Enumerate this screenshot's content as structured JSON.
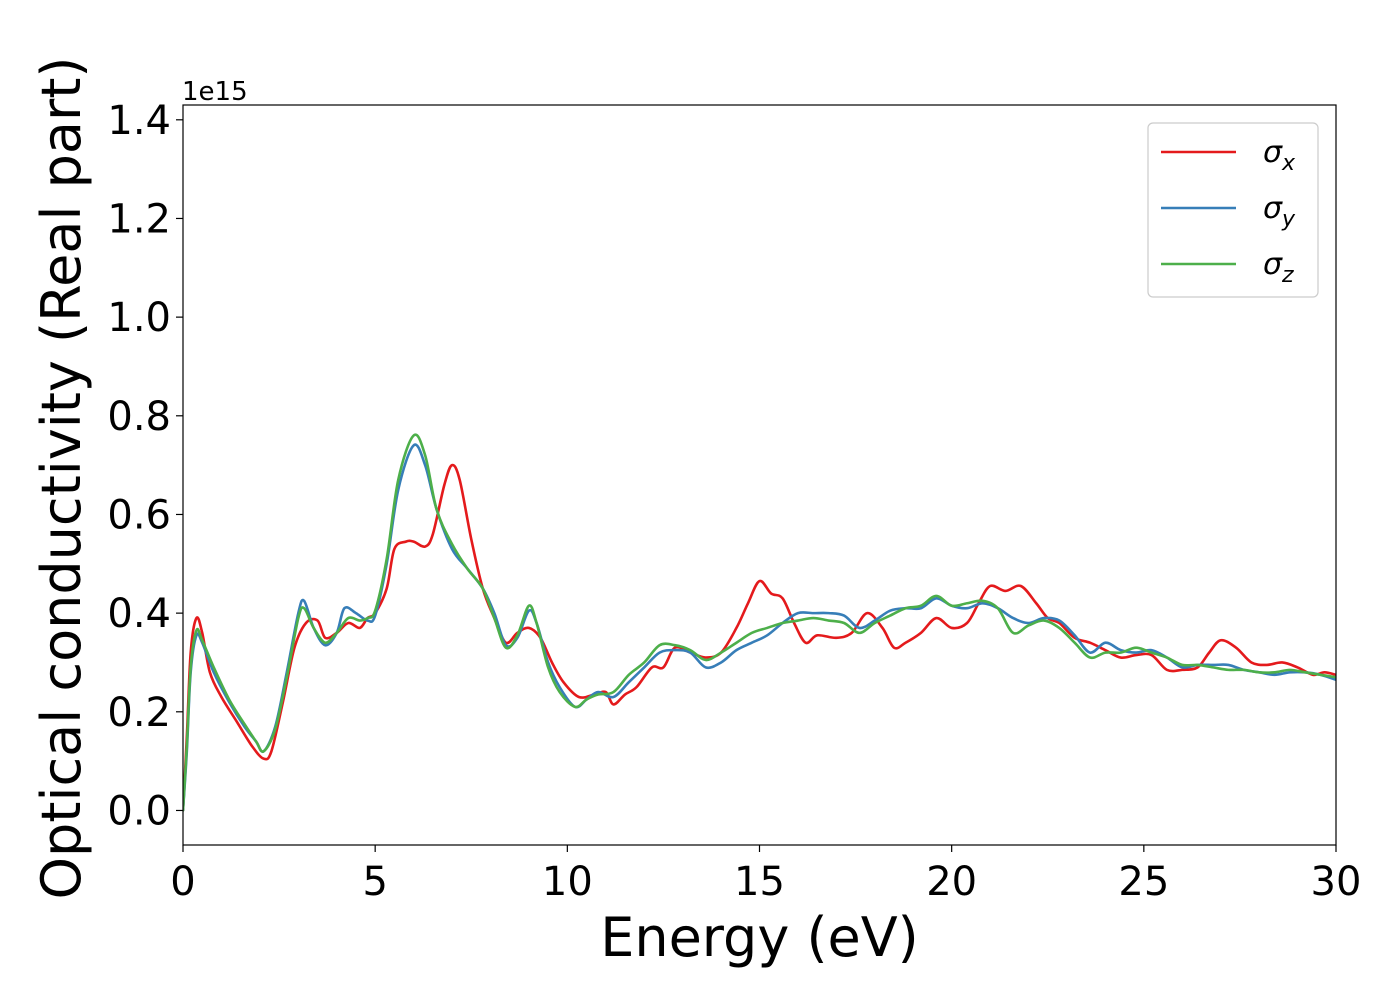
{
  "chart_data": {
    "type": "line",
    "title": "",
    "xlabel": "Energy (eV)",
    "ylabel": "Optical conductivity (Real part)",
    "y_offset_text": "1e15",
    "xlim": [
      0,
      30
    ],
    "ylim": [
      -0.07,
      1.43
    ],
    "x_ticks": [
      0,
      5,
      10,
      15,
      20,
      25,
      30
    ],
    "x_tick_labels": [
      "0",
      "5",
      "10",
      "15",
      "20",
      "25",
      "30"
    ],
    "y_ticks": [
      0.0,
      0.2,
      0.4,
      0.6,
      0.8,
      1.0,
      1.2,
      1.4
    ],
    "y_tick_labels": [
      "0.0",
      "0.2",
      "0.4",
      "0.6",
      "0.8",
      "1.0",
      "1.2",
      "1.4"
    ],
    "grid": false,
    "legend_position": "top-right",
    "series": [
      {
        "name": "σx",
        "legend_symbol": "σ",
        "legend_subscript": "x",
        "color": "#e41a1c",
        "points": [
          [
            0,
            0.0
          ],
          [
            0.1,
            0.15
          ],
          [
            0.2,
            0.32
          ],
          [
            0.35,
            0.39
          ],
          [
            0.5,
            0.36
          ],
          [
            0.7,
            0.28
          ],
          [
            1.0,
            0.23
          ],
          [
            1.4,
            0.18
          ],
          [
            1.8,
            0.13
          ],
          [
            2.1,
            0.105
          ],
          [
            2.3,
            0.12
          ],
          [
            2.6,
            0.22
          ],
          [
            2.9,
            0.33
          ],
          [
            3.2,
            0.38
          ],
          [
            3.5,
            0.385
          ],
          [
            3.7,
            0.35
          ],
          [
            4.0,
            0.36
          ],
          [
            4.3,
            0.38
          ],
          [
            4.6,
            0.37
          ],
          [
            4.8,
            0.39
          ],
          [
            5.0,
            0.4
          ],
          [
            5.3,
            0.45
          ],
          [
            5.5,
            0.53
          ],
          [
            5.8,
            0.545
          ],
          [
            6.0,
            0.545
          ],
          [
            6.3,
            0.535
          ],
          [
            6.5,
            0.56
          ],
          [
            6.8,
            0.66
          ],
          [
            7.0,
            0.7
          ],
          [
            7.2,
            0.67
          ],
          [
            7.5,
            0.55
          ],
          [
            7.8,
            0.45
          ],
          [
            8.1,
            0.39
          ],
          [
            8.4,
            0.34
          ],
          [
            8.7,
            0.36
          ],
          [
            9.0,
            0.37
          ],
          [
            9.3,
            0.35
          ],
          [
            9.6,
            0.3
          ],
          [
            9.9,
            0.26
          ],
          [
            10.3,
            0.23
          ],
          [
            10.7,
            0.235
          ],
          [
            11.0,
            0.24
          ],
          [
            11.2,
            0.215
          ],
          [
            11.5,
            0.235
          ],
          [
            11.8,
            0.25
          ],
          [
            12.2,
            0.29
          ],
          [
            12.5,
            0.29
          ],
          [
            12.8,
            0.33
          ],
          [
            13.2,
            0.32
          ],
          [
            13.6,
            0.31
          ],
          [
            14.0,
            0.32
          ],
          [
            14.4,
            0.37
          ],
          [
            14.7,
            0.42
          ],
          [
            15.0,
            0.465
          ],
          [
            15.3,
            0.44
          ],
          [
            15.6,
            0.43
          ],
          [
            15.9,
            0.38
          ],
          [
            16.2,
            0.34
          ],
          [
            16.5,
            0.355
          ],
          [
            17.0,
            0.35
          ],
          [
            17.4,
            0.36
          ],
          [
            17.8,
            0.4
          ],
          [
            18.2,
            0.37
          ],
          [
            18.5,
            0.33
          ],
          [
            18.8,
            0.34
          ],
          [
            19.2,
            0.36
          ],
          [
            19.6,
            0.39
          ],
          [
            20.0,
            0.37
          ],
          [
            20.4,
            0.38
          ],
          [
            20.7,
            0.42
          ],
          [
            21.0,
            0.455
          ],
          [
            21.4,
            0.445
          ],
          [
            21.8,
            0.455
          ],
          [
            22.2,
            0.42
          ],
          [
            22.5,
            0.39
          ],
          [
            22.8,
            0.38
          ],
          [
            23.2,
            0.35
          ],
          [
            23.6,
            0.34
          ],
          [
            24.0,
            0.325
          ],
          [
            24.4,
            0.31
          ],
          [
            24.8,
            0.315
          ],
          [
            25.2,
            0.315
          ],
          [
            25.6,
            0.285
          ],
          [
            26.0,
            0.285
          ],
          [
            26.4,
            0.29
          ],
          [
            26.7,
            0.32
          ],
          [
            27.0,
            0.345
          ],
          [
            27.4,
            0.33
          ],
          [
            27.8,
            0.3
          ],
          [
            28.2,
            0.295
          ],
          [
            28.6,
            0.3
          ],
          [
            29.0,
            0.29
          ],
          [
            29.4,
            0.275
          ],
          [
            29.7,
            0.28
          ],
          [
            30.0,
            0.275
          ]
        ]
      },
      {
        "name": "σy",
        "legend_symbol": "σ",
        "legend_subscript": "y",
        "color": "#377eb8",
        "points": [
          [
            0,
            0.0
          ],
          [
            0.1,
            0.12
          ],
          [
            0.2,
            0.28
          ],
          [
            0.35,
            0.355
          ],
          [
            0.5,
            0.34
          ],
          [
            0.8,
            0.28
          ],
          [
            1.2,
            0.22
          ],
          [
            1.6,
            0.17
          ],
          [
            1.9,
            0.14
          ],
          [
            2.1,
            0.12
          ],
          [
            2.4,
            0.17
          ],
          [
            2.7,
            0.28
          ],
          [
            3.0,
            0.4
          ],
          [
            3.15,
            0.425
          ],
          [
            3.4,
            0.37
          ],
          [
            3.7,
            0.335
          ],
          [
            4.0,
            0.36
          ],
          [
            4.2,
            0.41
          ],
          [
            4.5,
            0.4
          ],
          [
            4.8,
            0.385
          ],
          [
            5.0,
            0.395
          ],
          [
            5.3,
            0.5
          ],
          [
            5.6,
            0.65
          ],
          [
            6.0,
            0.74
          ],
          [
            6.3,
            0.7
          ],
          [
            6.6,
            0.61
          ],
          [
            7.0,
            0.53
          ],
          [
            7.4,
            0.49
          ],
          [
            7.8,
            0.45
          ],
          [
            8.1,
            0.4
          ],
          [
            8.4,
            0.335
          ],
          [
            8.7,
            0.35
          ],
          [
            9.0,
            0.405
          ],
          [
            9.2,
            0.38
          ],
          [
            9.5,
            0.3
          ],
          [
            9.8,
            0.25
          ],
          [
            10.2,
            0.21
          ],
          [
            10.5,
            0.225
          ],
          [
            10.8,
            0.24
          ],
          [
            11.2,
            0.23
          ],
          [
            11.6,
            0.26
          ],
          [
            12.0,
            0.29
          ],
          [
            12.4,
            0.32
          ],
          [
            12.8,
            0.325
          ],
          [
            13.2,
            0.32
          ],
          [
            13.6,
            0.29
          ],
          [
            14.0,
            0.3
          ],
          [
            14.4,
            0.325
          ],
          [
            14.8,
            0.34
          ],
          [
            15.2,
            0.355
          ],
          [
            15.6,
            0.38
          ],
          [
            16.0,
            0.4
          ],
          [
            16.4,
            0.4
          ],
          [
            16.8,
            0.4
          ],
          [
            17.2,
            0.395
          ],
          [
            17.6,
            0.37
          ],
          [
            18.0,
            0.385
          ],
          [
            18.4,
            0.405
          ],
          [
            18.8,
            0.41
          ],
          [
            19.2,
            0.41
          ],
          [
            19.6,
            0.43
          ],
          [
            20.0,
            0.415
          ],
          [
            20.4,
            0.41
          ],
          [
            20.8,
            0.42
          ],
          [
            21.2,
            0.41
          ],
          [
            21.6,
            0.39
          ],
          [
            22.0,
            0.38
          ],
          [
            22.4,
            0.39
          ],
          [
            22.8,
            0.385
          ],
          [
            23.2,
            0.355
          ],
          [
            23.6,
            0.32
          ],
          [
            24.0,
            0.34
          ],
          [
            24.4,
            0.325
          ],
          [
            24.8,
            0.32
          ],
          [
            25.2,
            0.325
          ],
          [
            25.6,
            0.31
          ],
          [
            26.0,
            0.29
          ],
          [
            26.4,
            0.295
          ],
          [
            26.8,
            0.295
          ],
          [
            27.2,
            0.295
          ],
          [
            27.6,
            0.285
          ],
          [
            28.0,
            0.28
          ],
          [
            28.4,
            0.275
          ],
          [
            28.8,
            0.28
          ],
          [
            29.2,
            0.28
          ],
          [
            29.6,
            0.275
          ],
          [
            30.0,
            0.265
          ]
        ]
      },
      {
        "name": "σz",
        "legend_symbol": "σ",
        "legend_subscript": "z",
        "color": "#4daf4a",
        "points": [
          [
            0,
            0.0
          ],
          [
            0.1,
            0.13
          ],
          [
            0.2,
            0.29
          ],
          [
            0.35,
            0.365
          ],
          [
            0.5,
            0.345
          ],
          [
            0.8,
            0.29
          ],
          [
            1.2,
            0.225
          ],
          [
            1.6,
            0.175
          ],
          [
            1.9,
            0.14
          ],
          [
            2.1,
            0.12
          ],
          [
            2.4,
            0.165
          ],
          [
            2.7,
            0.27
          ],
          [
            3.0,
            0.39
          ],
          [
            3.15,
            0.41
          ],
          [
            3.4,
            0.37
          ],
          [
            3.7,
            0.34
          ],
          [
            4.0,
            0.36
          ],
          [
            4.3,
            0.39
          ],
          [
            4.6,
            0.385
          ],
          [
            4.8,
            0.39
          ],
          [
            5.0,
            0.405
          ],
          [
            5.3,
            0.51
          ],
          [
            5.6,
            0.67
          ],
          [
            6.0,
            0.76
          ],
          [
            6.3,
            0.72
          ],
          [
            6.6,
            0.61
          ],
          [
            7.0,
            0.54
          ],
          [
            7.4,
            0.49
          ],
          [
            7.8,
            0.45
          ],
          [
            8.1,
            0.39
          ],
          [
            8.4,
            0.33
          ],
          [
            8.7,
            0.355
          ],
          [
            9.0,
            0.415
          ],
          [
            9.2,
            0.38
          ],
          [
            9.5,
            0.29
          ],
          [
            9.8,
            0.24
          ],
          [
            10.2,
            0.21
          ],
          [
            10.5,
            0.225
          ],
          [
            10.8,
            0.235
          ],
          [
            11.2,
            0.24
          ],
          [
            11.6,
            0.275
          ],
          [
            12.0,
            0.3
          ],
          [
            12.4,
            0.335
          ],
          [
            12.8,
            0.335
          ],
          [
            13.2,
            0.325
          ],
          [
            13.6,
            0.305
          ],
          [
            14.0,
            0.32
          ],
          [
            14.4,
            0.34
          ],
          [
            14.8,
            0.36
          ],
          [
            15.2,
            0.37
          ],
          [
            15.6,
            0.38
          ],
          [
            16.0,
            0.385
          ],
          [
            16.4,
            0.39
          ],
          [
            16.8,
            0.385
          ],
          [
            17.2,
            0.38
          ],
          [
            17.6,
            0.36
          ],
          [
            18.0,
            0.38
          ],
          [
            18.4,
            0.395
          ],
          [
            18.8,
            0.41
          ],
          [
            19.2,
            0.415
          ],
          [
            19.6,
            0.435
          ],
          [
            20.0,
            0.415
          ],
          [
            20.4,
            0.42
          ],
          [
            20.8,
            0.425
          ],
          [
            21.2,
            0.41
          ],
          [
            21.6,
            0.36
          ],
          [
            22.0,
            0.375
          ],
          [
            22.4,
            0.385
          ],
          [
            22.8,
            0.37
          ],
          [
            23.2,
            0.34
          ],
          [
            23.6,
            0.31
          ],
          [
            24.0,
            0.32
          ],
          [
            24.4,
            0.32
          ],
          [
            24.8,
            0.33
          ],
          [
            25.2,
            0.32
          ],
          [
            25.6,
            0.31
          ],
          [
            26.0,
            0.295
          ],
          [
            26.4,
            0.295
          ],
          [
            26.8,
            0.29
          ],
          [
            27.2,
            0.285
          ],
          [
            27.6,
            0.285
          ],
          [
            28.0,
            0.28
          ],
          [
            28.4,
            0.28
          ],
          [
            28.8,
            0.285
          ],
          [
            29.2,
            0.28
          ],
          [
            29.6,
            0.275
          ],
          [
            30.0,
            0.27
          ]
        ]
      }
    ]
  }
}
